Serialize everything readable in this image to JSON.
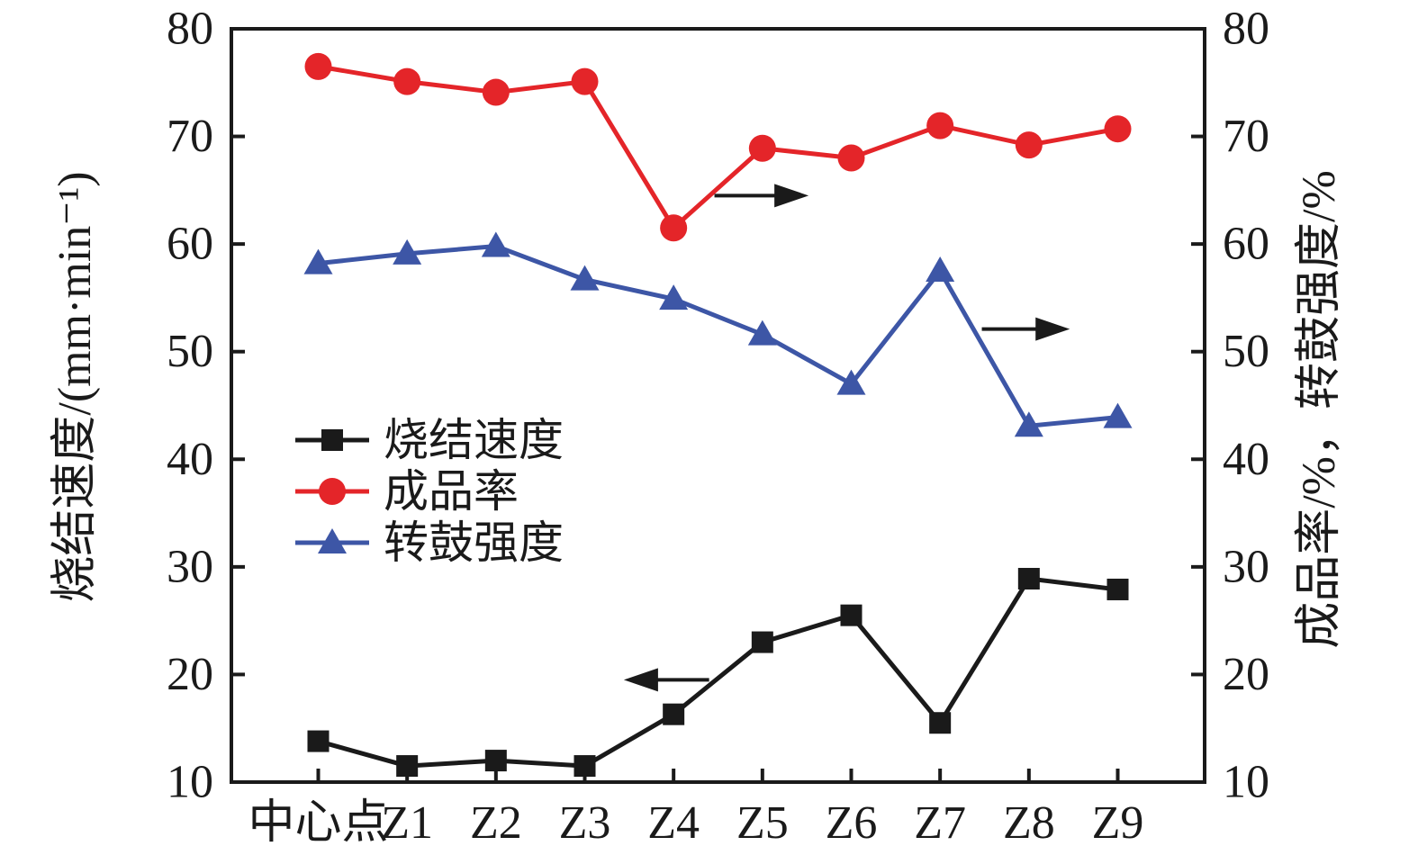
{
  "chart_data": {
    "type": "line",
    "title": "",
    "background": "#ffffff",
    "axis_color": "#1a1a1a",
    "grid": false,
    "categories": [
      "中心点",
      "Z1",
      "Z2",
      "Z3",
      "Z4",
      "Z5",
      "Z6",
      "Z7",
      "Z8",
      "Z9"
    ],
    "series": [
      {
        "name": "烧结速度",
        "marker": "square",
        "color": "#1a1a1a",
        "axis": "left",
        "values": [
          13.8,
          11.5,
          12.0,
          11.5,
          16.3,
          23.0,
          25.5,
          15.5,
          28.9,
          27.9
        ]
      },
      {
        "name": "成品率",
        "marker": "circle",
        "color": "#e42529",
        "axis": "right",
        "values": [
          76.5,
          75.1,
          74.1,
          75.1,
          61.5,
          68.9,
          68.0,
          71.0,
          69.2,
          70.7
        ]
      },
      {
        "name": "转鼓强度",
        "marker": "triangle",
        "color": "#3d56a6",
        "axis": "right",
        "values": [
          58.2,
          59.1,
          59.8,
          56.7,
          54.9,
          51.6,
          47.0,
          57.5,
          43.1,
          43.9
        ]
      }
    ],
    "left_axis": {
      "label": "烧结速度/(mm·min⁻¹)",
      "min": 10,
      "max": 80,
      "tick_step": 10,
      "ticks": [
        10,
        20,
        30,
        40,
        50,
        60,
        70,
        80
      ]
    },
    "right_axis": {
      "label": "成品率/%，转鼓强度/%",
      "min": 10,
      "max": 80,
      "tick_step": 10,
      "ticks": [
        10,
        20,
        30,
        40,
        50,
        60,
        70,
        80
      ]
    },
    "legend": {
      "position": "inside-left-middle",
      "entries": [
        "烧结速度",
        "成品率",
        "转鼓强度"
      ]
    },
    "annotations": [
      {
        "type": "arrow",
        "direction": "right",
        "series": "成品率",
        "points_to": "right-axis",
        "x_from": 4.46,
        "x_to": 5.52,
        "y": 64.5
      },
      {
        "type": "arrow",
        "direction": "right",
        "series": "转鼓强度",
        "points_to": "right-axis",
        "x_from": 7.47,
        "x_to": 8.46,
        "y": 52.1
      },
      {
        "type": "arrow",
        "direction": "left",
        "series": "烧结速度",
        "points_to": "left-axis",
        "x_from": 4.4,
        "x_to": 3.44,
        "y": 19.5
      }
    ]
  }
}
